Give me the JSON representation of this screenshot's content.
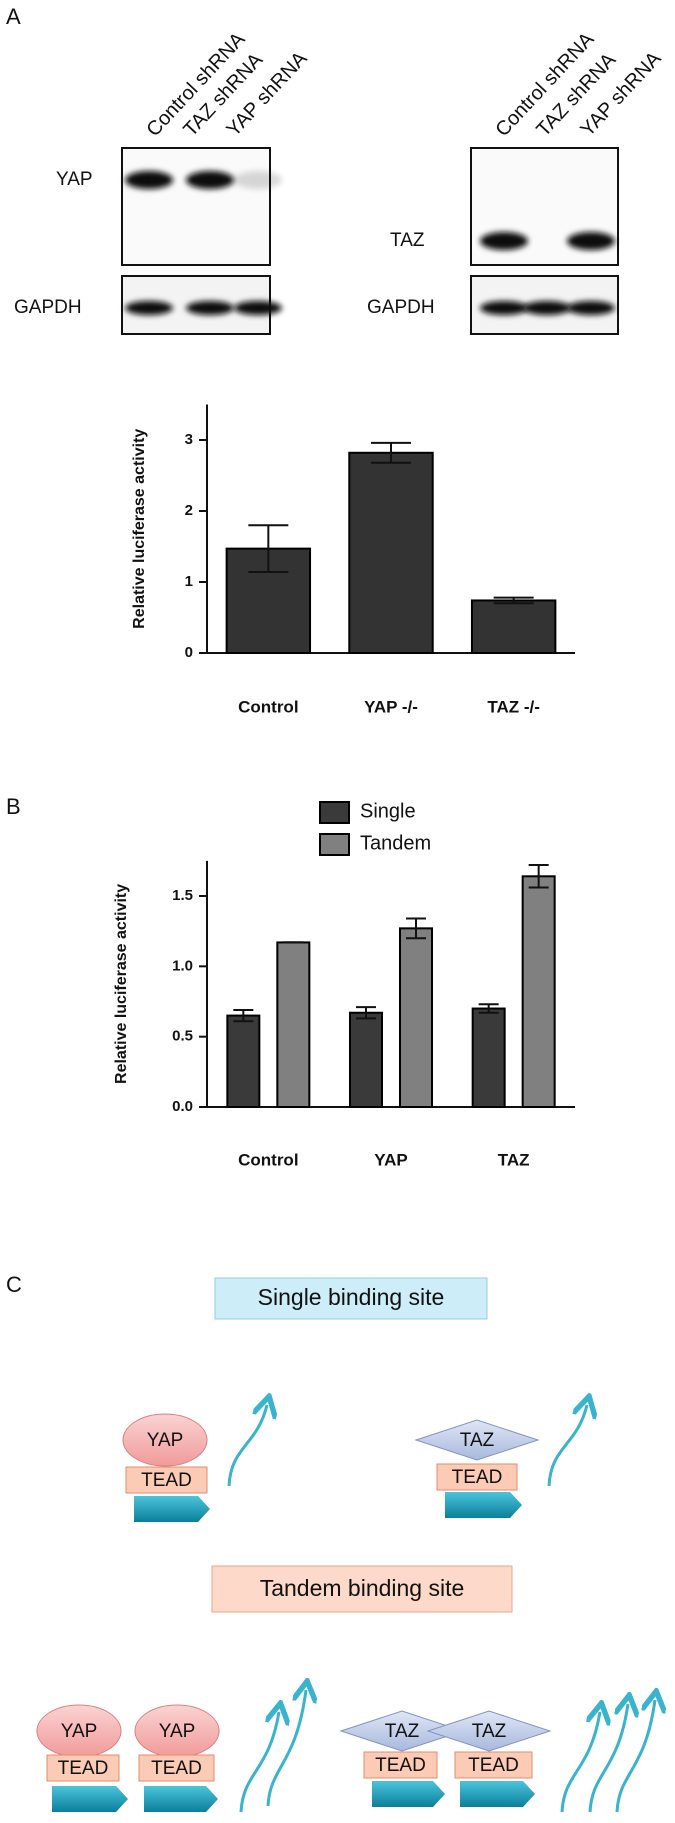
{
  "panel_labels": [
    "A",
    "B",
    "C"
  ],
  "blots": [
    {
      "lanes": [
        "Control shRNA",
        "TAZ shRNA",
        "YAP shRNA"
      ],
      "rows": [
        "YAP",
        "GAPDH"
      ]
    },
    {
      "lanes": [
        "Control shRNA",
        "TAZ shRNA",
        "YAP shRNA"
      ],
      "rows": [
        "TAZ",
        "GAPDH"
      ]
    }
  ],
  "chart_data": [
    {
      "type": "bar",
      "ylabel": "Relative luciferase activity",
      "categories": [
        "Control",
        "YAP -/-",
        "TAZ -/-"
      ],
      "values": [
        1.47,
        2.82,
        0.74
      ],
      "errors": [
        0.33,
        0.14,
        0.04
      ],
      "color": "#333333",
      "ylim": [
        0,
        3.5
      ],
      "yticks": [
        0,
        1,
        2,
        3
      ]
    },
    {
      "type": "grouped_bar",
      "ylabel": "Relative luciferase activity",
      "categories": [
        "Control",
        "YAP",
        "TAZ"
      ],
      "series": [
        {
          "name": "Single",
          "color": "#3a3a3a",
          "values": [
            0.65,
            0.67,
            0.7
          ],
          "errors": [
            0.04,
            0.04,
            0.03
          ]
        },
        {
          "name": "Tandem",
          "color": "#808080",
          "values": [
            1.17,
            1.27,
            1.64
          ],
          "errors": [
            0,
            0.07,
            0.08
          ]
        }
      ],
      "ylim": [
        0,
        1.75
      ],
      "yticks": [
        {
          "value": 0,
          "label": "0.0"
        },
        {
          "value": 0.5,
          "label": "0.5"
        },
        {
          "value": 1,
          "label": "1.0"
        },
        {
          "value": 1.5,
          "label": "1.5"
        }
      ]
    }
  ],
  "diagram": {
    "single_title": "Single binding site",
    "tandem_title": "Tandem binding site",
    "single": [
      {
        "cofactor": "YAP",
        "tead": "TEAD"
      },
      {
        "cofactor": "TAZ",
        "tead": "TEAD"
      }
    ],
    "tandem": [
      [
        {
          "cofactor": "YAP",
          "tead": "TEAD"
        },
        {
          "cofactor": "YAP",
          "tead": "TEAD"
        }
      ],
      [
        {
          "cofactor": "TAZ",
          "tead": "TEAD"
        },
        {
          "cofactor": "TAZ",
          "tead": "TEAD"
        }
      ]
    ]
  }
}
